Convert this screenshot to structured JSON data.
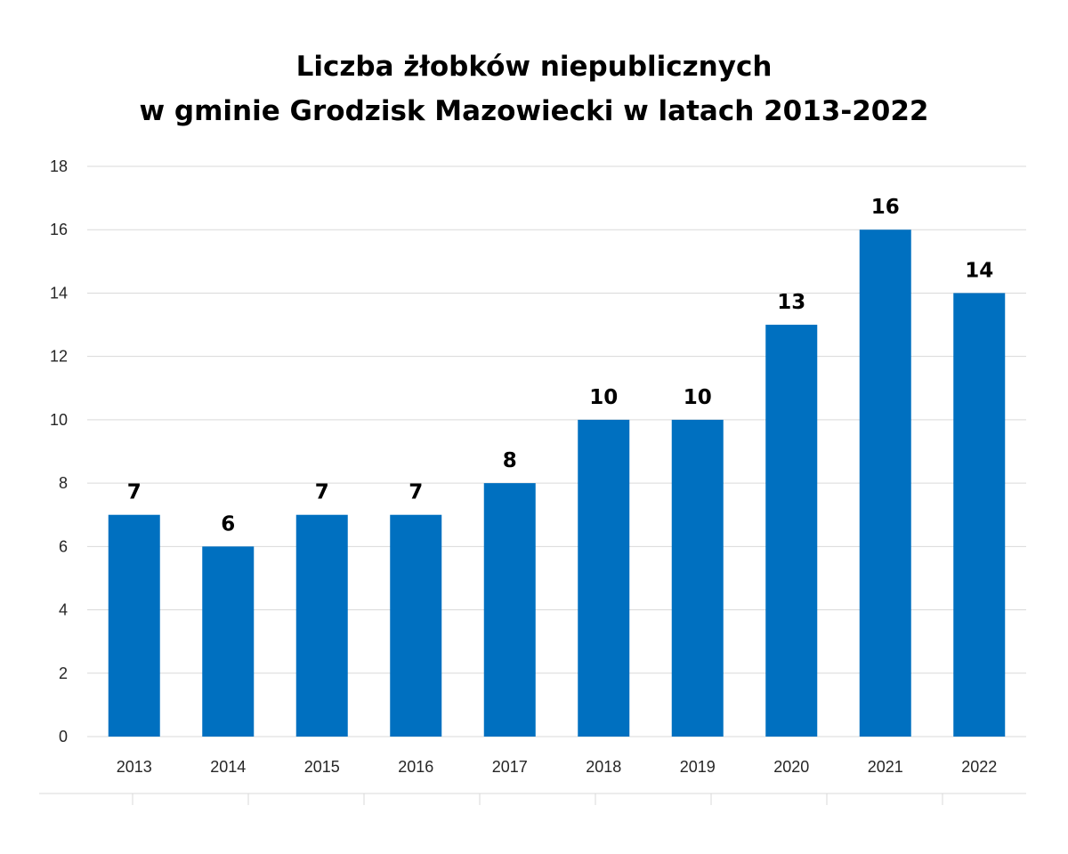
{
  "chart_data": {
    "type": "bar",
    "title_lines": [
      "Liczba żłobków niepublicznych",
      "w gminie Grodzisk Mazowiecki w latach 2013-2022"
    ],
    "categories": [
      "2013",
      "2014",
      "2015",
      "2016",
      "2017",
      "2018",
      "2019",
      "2020",
      "2021",
      "2022"
    ],
    "values": [
      7,
      6,
      7,
      7,
      8,
      10,
      10,
      13,
      16,
      14
    ],
    "ylim": [
      0,
      18
    ],
    "yticks": [
      0,
      2,
      4,
      6,
      8,
      10,
      12,
      14,
      16,
      18
    ],
    "xlabel": "",
    "ylabel": "",
    "grid": true,
    "data_labels": true,
    "bar_color": "#0070C0",
    "grid_color": "#D9D9D9"
  }
}
